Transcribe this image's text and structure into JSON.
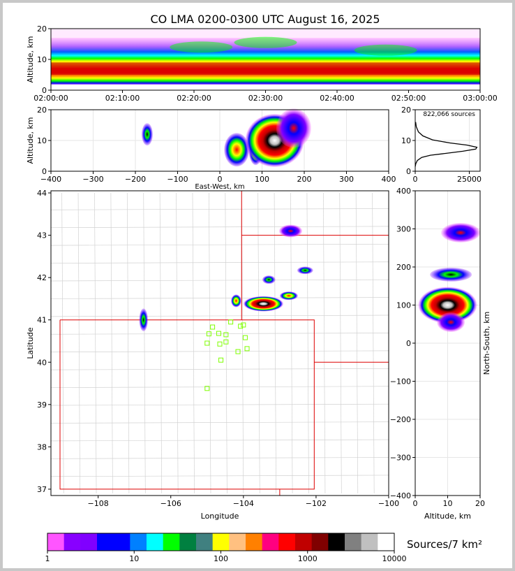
{
  "figure": {
    "title": "CO LMA 0200-0300 UTC August 16, 2025",
    "source_count": "822,066 sources",
    "colorbar_label": "Sources/7 km²"
  },
  "chart_data": [
    {
      "type": "heatmap",
      "panel": "time-height",
      "xlabel": "",
      "ylabel": "Altitude, km",
      "x_ticks": [
        "02:00:00",
        "02:10:00",
        "02:20:00",
        "02:30:00",
        "02:40:00",
        "02:50:00",
        "03:00:00"
      ],
      "y_ticks": [
        0,
        10,
        20
      ],
      "ylim": [
        0,
        20
      ]
    },
    {
      "type": "heatmap",
      "panel": "east-west-height",
      "xlabel": "East-West, km",
      "ylabel": "Altitude, km",
      "x_ticks": [
        -400,
        -300,
        -200,
        -100,
        0,
        100,
        200,
        300,
        400
      ],
      "y_ticks": [
        0,
        10,
        20
      ],
      "xlim": [
        -400,
        400
      ],
      "ylim": [
        0,
        20
      ]
    },
    {
      "type": "line",
      "panel": "altitude-histogram",
      "x_ticks": [
        0,
        25000
      ],
      "y_ticks": [
        0,
        10,
        20
      ],
      "ylim": [
        0,
        20
      ],
      "series": [
        {
          "x": [
            0,
            300,
            1000,
            3000,
            7000,
            14000,
            22000,
            28000,
            28500,
            24000,
            16000,
            8000,
            3500,
            1500,
            500,
            200
          ],
          "y": [
            1.5,
            2.5,
            3.5,
            4.5,
            5.2,
            5.8,
            6.5,
            7.2,
            7.8,
            8.5,
            9.2,
            10.2,
            11.5,
            12.8,
            14.5,
            16
          ]
        }
      ]
    },
    {
      "type": "heatmap",
      "panel": "plan-view",
      "xlabel": "Longitude",
      "ylabel": "Latitude",
      "x_ticks": [
        "−108",
        "−106",
        "−104",
        "−102",
        "−100"
      ],
      "y_ticks": [
        37,
        38,
        39,
        40,
        41,
        42,
        43,
        44
      ],
      "xlim": [
        -109.3,
        -100.0
      ],
      "ylim": [
        36.85,
        44.05
      ],
      "stations": [
        [
          -105.0,
          39.38
        ],
        [
          -104.62,
          40.05
        ],
        [
          -104.48,
          40.48
        ],
        [
          -104.48,
          40.65
        ],
        [
          -104.65,
          40.43
        ],
        [
          -104.68,
          40.68
        ],
        [
          -104.85,
          40.83
        ],
        [
          -104.95,
          40.67
        ],
        [
          -105.0,
          40.45
        ],
        [
          -104.15,
          40.25
        ],
        [
          -103.9,
          40.32
        ],
        [
          -103.95,
          40.58
        ],
        [
          -104.08,
          40.85
        ],
        [
          -104.0,
          40.88
        ],
        [
          -104.35,
          40.95
        ]
      ],
      "clusters": [
        {
          "lon": -106.75,
          "lat": 41.0,
          "rx": 0.12,
          "ry": 0.27,
          "level": 0.55
        },
        {
          "lon": -103.45,
          "lat": 41.38,
          "rx": 0.55,
          "ry": 0.18,
          "level": 1.0
        },
        {
          "lon": -104.2,
          "lat": 41.45,
          "rx": 0.14,
          "ry": 0.15,
          "level": 0.7
        },
        {
          "lon": -102.75,
          "lat": 41.57,
          "rx": 0.25,
          "ry": 0.1,
          "level": 0.6
        },
        {
          "lon": -103.3,
          "lat": 41.95,
          "rx": 0.18,
          "ry": 0.1,
          "level": 0.55
        },
        {
          "lon": -102.3,
          "lat": 42.17,
          "rx": 0.22,
          "ry": 0.09,
          "level": 0.5
        },
        {
          "lon": -102.7,
          "lat": 43.1,
          "rx": 0.32,
          "ry": 0.15,
          "level": 0.4
        }
      ]
    },
    {
      "type": "heatmap",
      "panel": "north-south-height",
      "xlabel": "Altitude, km",
      "ylabel": "North-South, km",
      "x_ticks": [
        0,
        10,
        20
      ],
      "y_ticks": [
        400,
        300,
        200,
        100,
        0,
        -100,
        -200,
        -300,
        -400
      ],
      "xlim": [
        0,
        20
      ],
      "ylim": [
        -400,
        400
      ]
    },
    {
      "type": "colorbar",
      "panel": "colorbar",
      "colors": [
        "#ff55ff",
        "#8800ff",
        "#8000ff",
        "#0000ff",
        "#0000ff",
        "#0080ff",
        "#00ffff",
        "#00ff00",
        "#008040",
        "#408080",
        "#ffff00",
        "#ffc080",
        "#ff8000",
        "#ff0080",
        "#ff0000",
        "#c00000",
        "#800000",
        "#000000",
        "#808080",
        "#c0c0c0",
        "#ffffff"
      ],
      "tick_values": [
        1,
        10,
        100,
        1000,
        10000
      ],
      "tick_labels": [
        "1",
        "10",
        "100",
        "1000",
        "10000"
      ]
    }
  ]
}
